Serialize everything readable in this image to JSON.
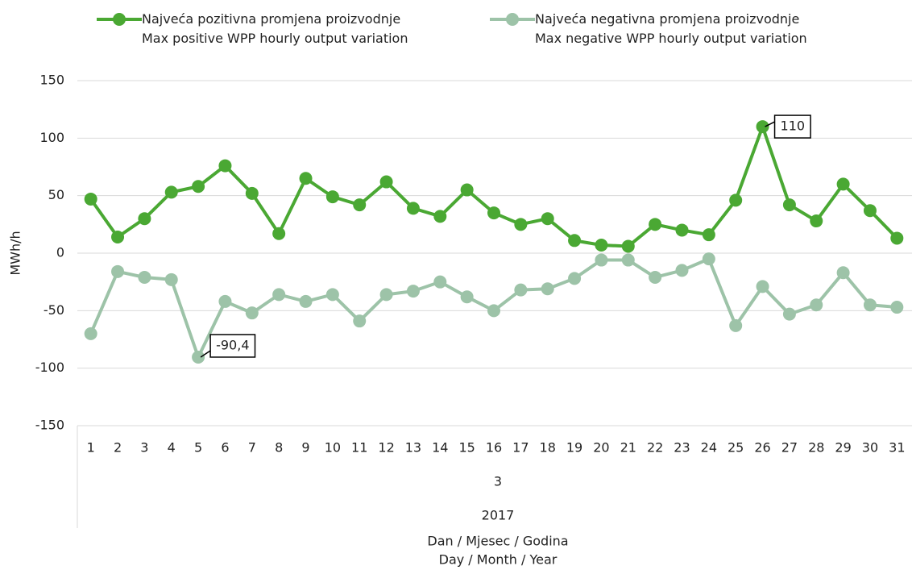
{
  "chart_data": {
    "type": "line",
    "categories": [
      "1",
      "2",
      "3",
      "4",
      "5",
      "6",
      "7",
      "8",
      "9",
      "10",
      "11",
      "12",
      "13",
      "14",
      "15",
      "16",
      "17",
      "18",
      "19",
      "20",
      "21",
      "22",
      "23",
      "24",
      "25",
      "26",
      "27",
      "28",
      "29",
      "30",
      "31"
    ],
    "x_groups": [
      "3",
      "2017"
    ],
    "xlabel": [
      "Dan / Mjesec / Godina",
      "Day / Month / Year"
    ],
    "ylabel": "MWh/h",
    "series": [
      {
        "name": "Najveća pozitivna promjena proizvodnje\nMax positive WPP hourly output variation",
        "color": "#4aa833",
        "values": [
          47,
          14,
          30,
          53,
          58,
          76,
          52,
          17,
          65,
          49,
          42,
          62,
          39,
          32,
          55,
          35,
          25,
          30,
          11,
          7,
          6,
          25,
          20,
          16,
          46,
          110,
          42,
          28,
          60,
          37,
          13
        ],
        "value_labels": [
          null,
          null,
          null,
          null,
          null,
          null,
          null,
          null,
          null,
          null,
          null,
          null,
          null,
          null,
          null,
          null,
          null,
          null,
          null,
          null,
          null,
          null,
          null,
          null,
          null,
          "110",
          null,
          null,
          null,
          null,
          null
        ]
      },
      {
        "name": "Najveća negativna promjena proizvodnje\nMax negative WPP hourly output variation",
        "color": "#9dc3a8",
        "values": [
          -70,
          -16,
          -21,
          -23,
          -90.4,
          -42,
          -52,
          -36,
          -42,
          -36,
          -59,
          -36,
          -33,
          -25,
          -38,
          -50,
          -32,
          -31,
          -22,
          -6,
          -6,
          -21,
          -15,
          -5,
          -63,
          -29,
          -53,
          -45,
          -17,
          -45,
          -47
        ],
        "value_labels": [
          null,
          null,
          null,
          null,
          "-90,4",
          null,
          null,
          null,
          null,
          null,
          null,
          null,
          null,
          null,
          null,
          null,
          null,
          null,
          null,
          null,
          null,
          null,
          null,
          null,
          null,
          null,
          null,
          null,
          null,
          null,
          null
        ]
      }
    ],
    "ylim": [
      -150,
      150
    ],
    "yticks": [
      -150,
      -100,
      -50,
      0,
      50,
      100,
      150
    ],
    "grid": true,
    "legend": "top"
  }
}
